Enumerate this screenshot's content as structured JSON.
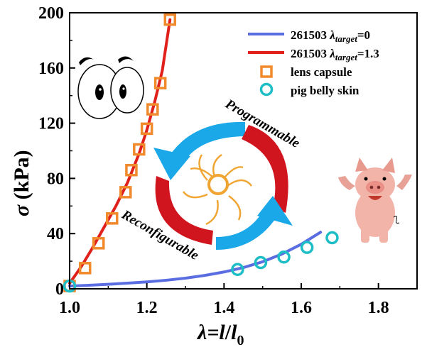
{
  "chart_data": {
    "type": "line",
    "xlim": [
      1.0,
      1.9
    ],
    "ylim": [
      0,
      200
    ],
    "x_ticks": [
      1.0,
      1.2,
      1.4,
      1.6,
      1.8
    ],
    "x_tick_labels": [
      "1.0",
      "1.2",
      "1.4",
      "1.6",
      "1.8"
    ],
    "y_ticks": [
      0,
      40,
      80,
      120,
      160,
      200
    ],
    "y_tick_labels": [
      "0",
      "40",
      "80",
      "120",
      "160",
      "200"
    ],
    "xlabel": {
      "prefix": "λ=",
      "l": "l",
      "slash": "/",
      "l0": "l",
      "sub": "0"
    },
    "ylabel": {
      "sym": "σ",
      "unit": " (kPa)"
    },
    "grid": false,
    "legend_position": "top-right",
    "series": [
      {
        "kind": "line",
        "color": "#5b6ee1",
        "legend": {
          "num": "261503 ",
          "lam": "λ",
          "sub": "target",
          "eq": "=0"
        },
        "x": [
          1.0,
          1.05,
          1.1,
          1.15,
          1.2,
          1.25,
          1.3,
          1.35,
          1.4,
          1.45,
          1.5,
          1.55,
          1.6,
          1.65
        ],
        "y": [
          2.0,
          2.6,
          3.3,
          4.1,
          5.0,
          6.2,
          7.7,
          9.7,
          12.2,
          15.4,
          19.6,
          25.2,
          32.3,
          41.0
        ]
      },
      {
        "kind": "line",
        "color": "#e0201b",
        "legend": {
          "num": "261503 ",
          "lam": "λ",
          "sub": "target",
          "eq": "=1.3"
        },
        "x": [
          1.0,
          1.03,
          1.06,
          1.09,
          1.12,
          1.15,
          1.18,
          1.2,
          1.22,
          1.24,
          1.26
        ],
        "y": [
          4.0,
          16.0,
          30.0,
          45.0,
          60.0,
          77.0,
          98.0,
          115.0,
          135.0,
          158.0,
          195.0
        ]
      },
      {
        "kind": "marker",
        "shape": "square",
        "color": "#f08a2c",
        "legend": {
          "text": "lens capsule"
        },
        "x": [
          1.0,
          1.04,
          1.075,
          1.11,
          1.145,
          1.16,
          1.18,
          1.2,
          1.215,
          1.235,
          1.26
        ],
        "y": [
          2.0,
          15.0,
          33.0,
          51.0,
          70.0,
          86.0,
          101.0,
          116.0,
          130.0,
          149.0,
          195.0
        ]
      },
      {
        "kind": "marker",
        "shape": "circle",
        "color": "#1ebec6",
        "legend": {
          "text": "pig belly skin"
        },
        "x": [
          1.0,
          1.435,
          1.495,
          1.555,
          1.615,
          1.68
        ],
        "y": [
          2.0,
          14.0,
          19.0,
          23.0,
          30.0,
          37.0
        ]
      }
    ],
    "annotations": [
      "Programmable",
      "Reconfigurable"
    ]
  }
}
